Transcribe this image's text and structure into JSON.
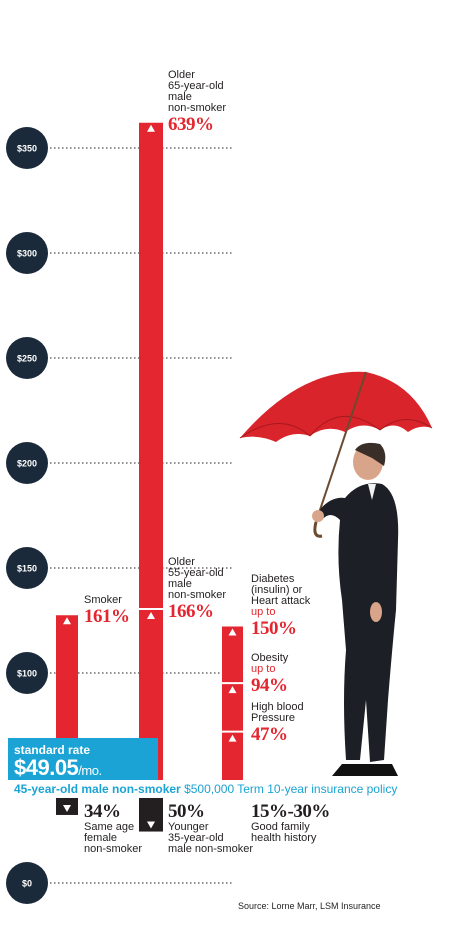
{
  "chart_data": {
    "type": "bar",
    "y_ticks": [
      "$350",
      "$300",
      "$250",
      "$200",
      "$150",
      "$100",
      "$0"
    ],
    "ylim": [
      0,
      375
    ],
    "baseline": 49.05,
    "standard_rate": {
      "title": "standard rate",
      "value": "$49.05",
      "unit": "/mo."
    },
    "policy": {
      "segment": "45-year-old male non-smoker",
      "rest": "$500,000 Term 10-year insurance policy"
    },
    "bars": [
      {
        "id": "smoker",
        "lines": [
          "Smoker"
        ],
        "pct": "161%",
        "value": 128.0,
        "direction": "up"
      },
      {
        "id": "older65",
        "lines": [
          "Older",
          "65-year-old",
          "male",
          "non-smoker"
        ],
        "pct": "639%",
        "value": 362.5,
        "direction": "up"
      },
      {
        "id": "older55",
        "lines": [
          "Older",
          "55-year-old",
          "male",
          "non-smoker"
        ],
        "pct": "166%",
        "value": 130.5,
        "direction": "up"
      },
      {
        "id": "diabetes",
        "lines": [
          "Diabetes",
          "(insulin) or",
          "Heart attack"
        ],
        "upto": "up to",
        "pct": "150%",
        "value": 122.6,
        "direction": "up"
      },
      {
        "id": "obesity",
        "lines": [
          "Obesity"
        ],
        "upto": "up to",
        "pct": "94%",
        "value": 95.2,
        "direction": "up"
      },
      {
        "id": "bp",
        "lines": [
          "High blood",
          "Pressure"
        ],
        "pct": "47%",
        "value": 72.1,
        "direction": "up"
      },
      {
        "id": "female",
        "lines": [
          "Same age",
          "female",
          "non-smoker"
        ],
        "pct": "34%",
        "value": 32.4,
        "direction": "down"
      },
      {
        "id": "younger35",
        "lines": [
          "Younger",
          "35-year-old",
          "male non-smoker"
        ],
        "pct": "50%",
        "value": 24.5,
        "direction": "down"
      },
      {
        "id": "family",
        "lines": [
          "Good family",
          "health history"
        ],
        "pct": "15%-30%",
        "value": 41.7,
        "direction": "down"
      }
    ],
    "source": "Source: Lorne Marr, LSM Insurance"
  }
}
